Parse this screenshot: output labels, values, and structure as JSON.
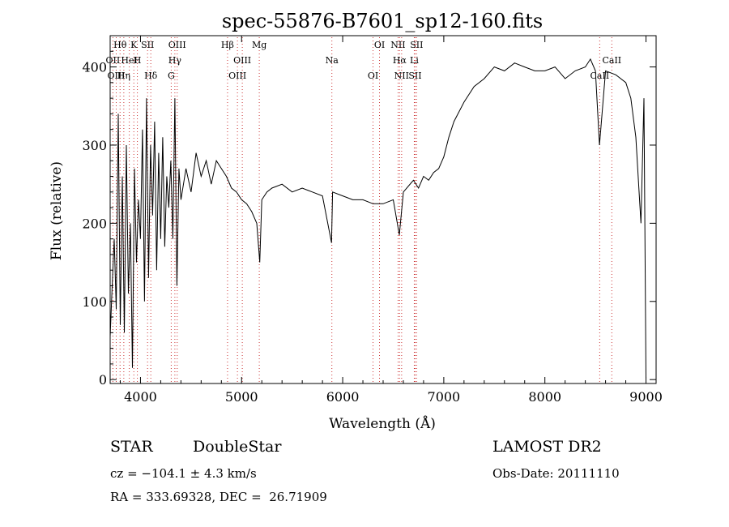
{
  "chart_data": {
    "type": "line",
    "title": "spec-55876-B7601_sp12-160.fits",
    "xlabel": "Wavelength (Å)",
    "ylabel": "Flux (relative)",
    "xlim": [
      3700,
      9100
    ],
    "ylim": [
      -5,
      440
    ],
    "xticks": [
      4000,
      5000,
      6000,
      7000,
      8000,
      9000
    ],
    "yticks": [
      0,
      100,
      200,
      300,
      400
    ],
    "grid": false,
    "color": "#000000",
    "line_marker_color": "#cc3333",
    "series": [
      {
        "x": [
          3700,
          3720,
          3740,
          3760,
          3780,
          3800,
          3820,
          3840,
          3860,
          3880,
          3900,
          3920,
          3940,
          3960,
          3980,
          4000,
          4020,
          4040,
          4060,
          4080,
          4100,
          4120,
          4140,
          4160,
          4180,
          4200,
          4220,
          4240,
          4260,
          4280,
          4300,
          4320,
          4340,
          4360,
          4380,
          4400,
          4450,
          4500,
          4550,
          4600,
          4650,
          4700,
          4750,
          4800,
          4850,
          4900,
          4950,
          5000,
          5050,
          5100,
          5150,
          5180,
          5200,
          5250,
          5300,
          5400,
          5500,
          5600,
          5700,
          5800,
          5890,
          5900,
          6000,
          6100,
          6200,
          6300,
          6400,
          6500,
          6560,
          6600,
          6700,
          6750,
          6800,
          6850,
          6900,
          6950,
          7000,
          7050,
          7100,
          7200,
          7300,
          7400,
          7500,
          7600,
          7700,
          7800,
          7900,
          8000,
          8100,
          8200,
          8300,
          8400,
          8450,
          8500,
          8540,
          8600,
          8700,
          8800,
          8850,
          8900,
          8950,
          8980,
          9000
        ],
        "y": [
          55,
          120,
          180,
          90,
          340,
          70,
          260,
          60,
          300,
          110,
          200,
          15,
          270,
          150,
          230,
          180,
          320,
          100,
          360,
          130,
          300,
          210,
          330,
          140,
          290,
          180,
          310,
          170,
          260,
          220,
          280,
          180,
          360,
          120,
          270,
          230,
          270,
          240,
          290,
          260,
          280,
          250,
          280,
          270,
          260,
          245,
          240,
          230,
          225,
          215,
          200,
          150,
          230,
          240,
          245,
          250,
          240,
          245,
          240,
          235,
          175,
          240,
          235,
          230,
          230,
          225,
          225,
          230,
          185,
          240,
          255,
          245,
          260,
          255,
          265,
          270,
          285,
          310,
          330,
          355,
          375,
          385,
          400,
          395,
          405,
          400,
          395,
          395,
          400,
          385,
          395,
          400,
          410,
          395,
          300,
          395,
          390,
          380,
          360,
          310,
          200,
          360,
          2
        ]
      }
    ],
    "line_labels": [
      {
        "label": "Hθ",
        "x": 3798
      },
      {
        "label": "OII",
        "x": 3727
      },
      {
        "label": "OIII",
        "x": 3760
      },
      {
        "label": "K",
        "x": 3934
      },
      {
        "label": "HeI",
        "x": 3889
      },
      {
        "label": "Hη",
        "x": 3835
      },
      {
        "label": "SII",
        "x": 4070
      },
      {
        "label": "H",
        "x": 3969
      },
      {
        "label": "Hδ",
        "x": 4102
      },
      {
        "label": "OIII",
        "x": 4363
      },
      {
        "label": "Hγ",
        "x": 4340
      },
      {
        "label": "G",
        "x": 4304
      },
      {
        "label": "Hβ",
        "x": 4861
      },
      {
        "label": "OIII",
        "x": 5007
      },
      {
        "label": "OIII",
        "x": 4959
      },
      {
        "label": "Mg",
        "x": 5175
      },
      {
        "label": "Na",
        "x": 5893
      },
      {
        "label": "OI",
        "x": 6300
      },
      {
        "label": "OI",
        "x": 6364
      },
      {
        "label": "Hα",
        "x": 6563
      },
      {
        "label": "SII",
        "x": 6716
      },
      {
        "label": "NII",
        "x": 6548
      },
      {
        "label": "Li",
        "x": 6708
      },
      {
        "label": "NII",
        "x": 6583
      },
      {
        "label": "SII",
        "x": 6731
      },
      {
        "label": "CaII",
        "x": 8662
      },
      {
        "label": "CaII",
        "x": 8542
      }
    ]
  },
  "info": {
    "class": "STAR",
    "subclass": "DoubleStar",
    "survey": "LAMOST DR2",
    "cz": "cz = −104.1 ± 4.3 km/s",
    "obs_date": "Obs-Date: 20111110",
    "coords": "RA = 333.69328, DEC =  26.71909"
  }
}
